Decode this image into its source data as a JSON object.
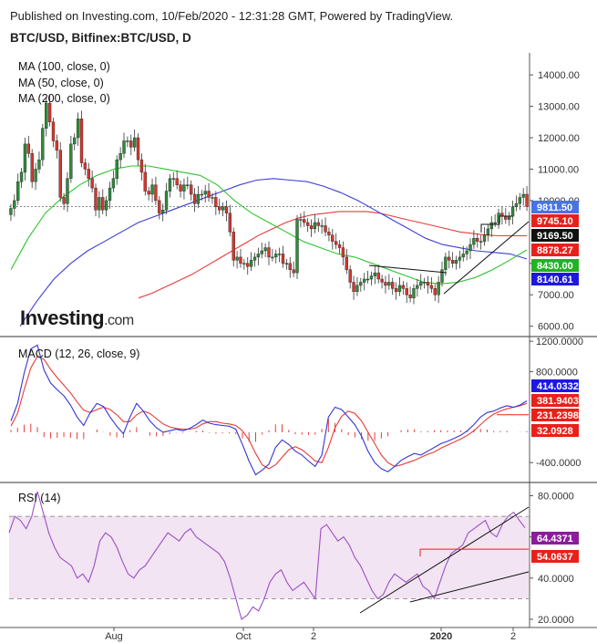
{
  "header": {
    "published": "Published on Investing.com, 10/Feb/2020 - 12:31:28 GMT, Powered by TradingView.",
    "symbol": "BTC/USD, Bitfinex:BTC/USD, D"
  },
  "brand": {
    "name": "Investing",
    "suffix": ".com"
  },
  "colors": {
    "up": "#2e8b3a",
    "down": "#d6362d",
    "ma100": "#3d3fd6",
    "ma50": "#2fc42f",
    "ma200": "#e83a3a",
    "macd_line": "#3535d8",
    "signal_line": "#e83a3a",
    "rsi_line": "#9b4fc5",
    "rsi_band": "#f2e4f2",
    "label_red": "#e8201a",
    "label_blue": "#1d18e0",
    "label_green": "#22b322",
    "label_purple": "#8b1d9b",
    "label_price": "#4a72e8"
  },
  "chart_data": [
    {
      "type": "candlestick",
      "panel": "price",
      "indicators": [
        {
          "label": "MA (100, close, 0)",
          "color": "#3d3fd6"
        },
        {
          "label": "MA (50, close, 0)",
          "color": "#2fc42f"
        },
        {
          "label": "MA (200, close, 0)",
          "color": "#e83a3a"
        }
      ],
      "x_ticks": [
        "Aug",
        "Oct",
        "2",
        "2020",
        "2"
      ],
      "y_ticks": [
        "14000.00",
        "13000.00",
        "12000.00",
        "11000.00",
        "10000.00",
        "8000.00",
        "7000.00",
        "6000.00"
      ],
      "ylim": [
        5700,
        14700
      ],
      "close": [
        9750,
        10000,
        10600,
        10900,
        11800,
        11500,
        10600,
        11000,
        11300,
        12300,
        13100,
        12500,
        11900,
        11600,
        10100,
        9900,
        10700,
        11800,
        12000,
        12600,
        11200,
        11000,
        10700,
        10400,
        9700,
        10100,
        9700,
        10000,
        10400,
        10700,
        11300,
        11500,
        11900,
        11900,
        11700,
        12000,
        11300,
        10900,
        10300,
        10200,
        10500,
        10000,
        9600,
        9700,
        10300,
        10700,
        10700,
        10500,
        10300,
        10500,
        10500,
        10200,
        9900,
        10200,
        10200,
        10300,
        10100,
        10100,
        9800,
        9700,
        9800,
        9600,
        9000,
        8100,
        8200,
        8000,
        8000,
        7900,
        8100,
        8200,
        8300,
        8400,
        8500,
        8200,
        8200,
        8300,
        8300,
        8000,
        8000,
        7800,
        7700,
        9400,
        9400,
        9300,
        9200,
        9100,
        9300,
        9200,
        9200,
        9000,
        8900,
        8700,
        8600,
        8500,
        8200,
        7800,
        7400,
        7100,
        7300,
        7400,
        7500,
        7500,
        7600,
        7700,
        7500,
        7400,
        7300,
        7400,
        7200,
        7100,
        7300,
        7200,
        7000,
        6900,
        7200,
        7300,
        7400,
        7400,
        7300,
        7200,
        7000,
        7400,
        7800,
        8200,
        8100,
        8000,
        8100,
        8200,
        8300,
        8400,
        8600,
        8800,
        8700,
        8700,
        8900,
        9100,
        9300,
        9300,
        9600,
        9500,
        9400,
        9500,
        9800,
        9900,
        10100,
        10200,
        9811.5
      ],
      "ma100": [
        6000,
        6800,
        7500,
        8000,
        8400,
        8700,
        9000,
        9300,
        9500,
        9700,
        9900,
        10100,
        10300,
        10500,
        10650,
        10700,
        10650,
        10600,
        10450,
        10250,
        10000,
        9700,
        9400,
        9100,
        8800,
        8600,
        8500,
        8400,
        8350,
        8300,
        8140.61
      ],
      "ma50": [
        7800,
        8800,
        9600,
        10100,
        10500,
        10800,
        11000,
        11100,
        11100,
        11000,
        10900,
        10800,
        10500,
        10000,
        9600,
        9300,
        9000,
        8700,
        8500,
        8300,
        8200,
        8000,
        7800,
        7600,
        7400,
        7350,
        7400,
        7550,
        7800,
        8100,
        8430
      ],
      "ma200": [
        6900,
        7050,
        7250,
        7450,
        7650,
        7900,
        8150,
        8400,
        8650,
        8900,
        9100,
        9300,
        9450,
        9550,
        9600,
        9650,
        9650,
        9650,
        9600,
        9500,
        9400,
        9300,
        9200,
        9100,
        9000,
        8950,
        8900,
        8880,
        8879,
        8878.27
      ],
      "last_labels": [
        {
          "value": "9811.50",
          "color": "#4a72e8"
        },
        {
          "value": "9745.10",
          "color": "#e8201a"
        },
        {
          "value": "9169.50",
          "color": "#111111"
        },
        {
          "value": "8878.27",
          "color": "#e8201a"
        },
        {
          "value": "8430.00",
          "color": "#22b322"
        },
        {
          "value": "8140.61",
          "color": "#1d18e0"
        }
      ]
    },
    {
      "type": "line",
      "panel": "macd",
      "indicators": [
        {
          "label": "MACD (12, 26, close, 9)",
          "color": "#3535d8"
        }
      ],
      "y_ticks": [
        "1200.0000",
        "800.0000",
        "-400.0000"
      ],
      "ylim": [
        -650,
        1250
      ],
      "macd": [
        150,
        380,
        780,
        1100,
        1150,
        820,
        650,
        560,
        480,
        360,
        200,
        90,
        260,
        380,
        340,
        200,
        80,
        -20,
        200,
        380,
        280,
        150,
        60,
        0,
        20,
        40,
        20,
        50,
        100,
        160,
        120,
        100,
        90,
        80,
        40,
        -160,
        -380,
        -560,
        -500,
        -420,
        -200,
        -100,
        -160,
        -250,
        -300,
        -380,
        -450,
        -300,
        200,
        330,
        300,
        200,
        100,
        -50,
        -250,
        -400,
        -480,
        -520,
        -450,
        -370,
        -320,
        -280,
        -300,
        -250,
        -200,
        -150,
        -120,
        -80,
        -40,
        20,
        100,
        200,
        260,
        280,
        320,
        350,
        330,
        360,
        414.0332
      ],
      "signal": [
        80,
        250,
        560,
        850,
        1000,
        960,
        830,
        720,
        620,
        520,
        400,
        290,
        260,
        300,
        330,
        300,
        230,
        140,
        140,
        230,
        280,
        250,
        180,
        110,
        70,
        50,
        40,
        40,
        60,
        110,
        140,
        140,
        120,
        110,
        90,
        20,
        -100,
        -280,
        -430,
        -480,
        -430,
        -330,
        -230,
        -190,
        -230,
        -300,
        -380,
        -400,
        -200,
        60,
        210,
        280,
        250,
        150,
        0,
        -150,
        -300,
        -400,
        -450,
        -430,
        -400,
        -370,
        -330,
        -290,
        -260,
        -210,
        -170,
        -130,
        -90,
        -40,
        20,
        100,
        180,
        240,
        280,
        310,
        330,
        350,
        381.9403
      ],
      "last_labels": [
        {
          "value": "414.0332",
          "color": "#1d18e0"
        },
        {
          "value": "381.9403",
          "color": "#e8201a"
        },
        {
          "value": "231.2398",
          "color": "#e8201a"
        },
        {
          "value": "32.0928",
          "color": "#e8201a"
        }
      ]
    },
    {
      "type": "line",
      "panel": "rsi",
      "indicators": [
        {
          "label": "RSI (14)",
          "color": "#9b4fc5"
        }
      ],
      "y_ticks": [
        "80.0000",
        "60.0000",
        "40.0000",
        "20.0000"
      ],
      "ylim": [
        16,
        86
      ],
      "band": [
        30,
        70
      ],
      "rsi": [
        62,
        70,
        68,
        64,
        70,
        82,
        72,
        62,
        55,
        50,
        48,
        46,
        40,
        42,
        38,
        46,
        58,
        62,
        60,
        55,
        48,
        42,
        40,
        44,
        46,
        50,
        54,
        58,
        62,
        60,
        58,
        62,
        64,
        60,
        58,
        56,
        54,
        52,
        48,
        40,
        30,
        20,
        22,
        26,
        24,
        30,
        38,
        42,
        44,
        38,
        34,
        36,
        38,
        34,
        30,
        64,
        66,
        62,
        58,
        60,
        56,
        50,
        46,
        40,
        34,
        30,
        32,
        38,
        42,
        40,
        38,
        40,
        42,
        36,
        34,
        30,
        38,
        46,
        52,
        54,
        56,
        62,
        64,
        66,
        68,
        62,
        60,
        66,
        70,
        72,
        68,
        64.4371
      ],
      "last_labels": [
        {
          "value": "64.4371",
          "color": "#8b1d9b"
        },
        {
          "value": "54.0637",
          "color": "#e8201a"
        }
      ]
    }
  ]
}
